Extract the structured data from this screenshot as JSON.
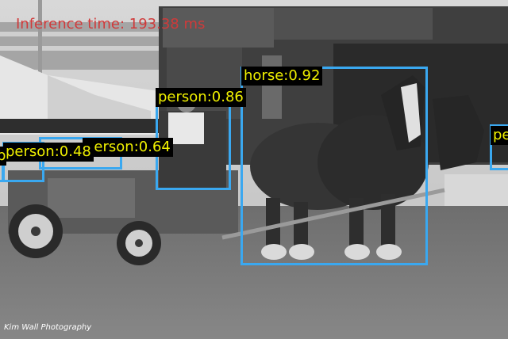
{
  "inference_text": "Inference time: 193.38 ms",
  "detections": [
    {
      "label": "horse:0.92"
    },
    {
      "label": "person:0.86"
    },
    {
      "label": "person:0.64"
    },
    {
      "label": "person:0.48"
    },
    {
      "label": "pe"
    },
    {
      "label": "p"
    }
  ],
  "credit": "Kim Wall Photography",
  "colors": {
    "box": "#3aa8f0",
    "label_text": "#f0f000",
    "inference_text": "#d03a3a"
  }
}
